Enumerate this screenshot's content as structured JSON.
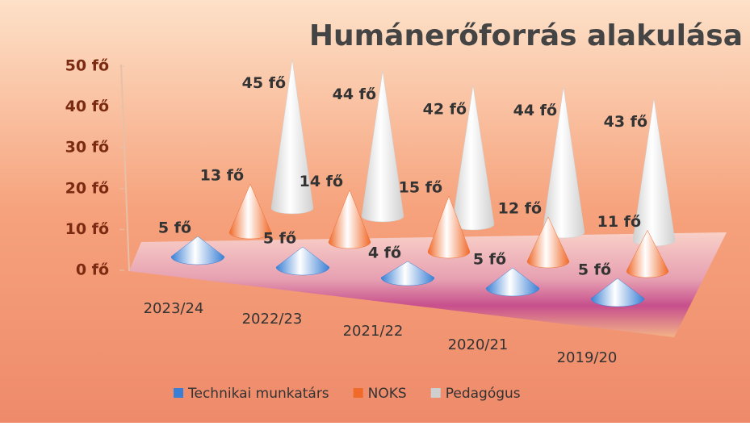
{
  "chart_data": {
    "type": "cone3d",
    "title": "Humánerőforrás alakulása",
    "categories": [
      "2023/24",
      "2022/23",
      "2021/22",
      "2020/21",
      "2019/20"
    ],
    "series": [
      {
        "name": "Technikai munkatárs",
        "color": "#3a7fd4",
        "values": [
          5,
          5,
          4,
          5,
          5
        ],
        "value_labels": [
          "5 fő",
          "5 fő",
          "4 fő",
          "5 fő",
          "5 fő"
        ]
      },
      {
        "name": "NOKS",
        "color": "#f06a2a",
        "values": [
          13,
          14,
          15,
          12,
          11
        ],
        "value_labels": [
          "13 fő",
          "14 fő",
          "15 fő",
          "12 fő",
          "11 fő"
        ]
      },
      {
        "name": "Pedagógus",
        "color": "#cfcfcf",
        "values": [
          45,
          44,
          42,
          44,
          43
        ],
        "value_labels": [
          "45 fő",
          "44 fő",
          "42 fő",
          "44 fő",
          "43 fő"
        ]
      }
    ],
    "ylim": [
      0,
      50
    ],
    "yticks": [
      {
        "value": 0,
        "label": "0 fő"
      },
      {
        "value": 10,
        "label": "10 fő"
      },
      {
        "value": 20,
        "label": "20 fő"
      },
      {
        "value": 30,
        "label": "30 fő"
      },
      {
        "value": 40,
        "label": "40 fő"
      },
      {
        "value": 50,
        "label": "50 fő"
      }
    ],
    "legend": "bottom"
  }
}
